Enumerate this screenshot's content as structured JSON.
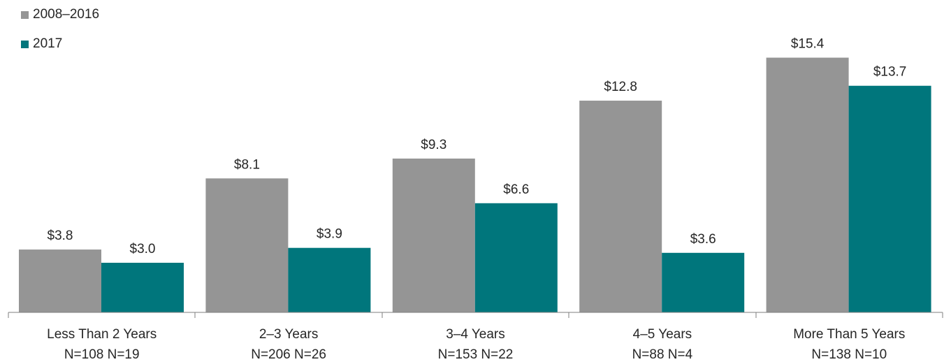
{
  "chart_data": {
    "type": "bar",
    "categories": [
      "Less Than 2 Years",
      "2–3 Years",
      "3–4 Years",
      "4–5 Years",
      "More Than 5 Years"
    ],
    "sample_sizes": [
      [
        "N=108",
        "N=19"
      ],
      [
        "N=206",
        "N=26"
      ],
      [
        "N=153",
        "N=22"
      ],
      [
        "N=88",
        "N=4"
      ],
      [
        "N=138",
        "N=10"
      ]
    ],
    "series": [
      {
        "name": "2008–2016",
        "color": "#959595",
        "values": [
          3.8,
          8.1,
          9.3,
          12.8,
          15.4
        ],
        "labels": [
          "$3.8",
          "$8.1",
          "$9.3",
          "$12.8",
          "$15.4"
        ]
      },
      {
        "name": "2017",
        "color": "#00767c",
        "values": [
          3.0,
          3.9,
          6.6,
          3.6,
          13.7
        ],
        "labels": [
          "$3.0",
          "$3.9",
          "$6.6",
          "$3.6",
          "$13.7"
        ]
      }
    ],
    "title": "",
    "xlabel": "",
    "ylabel": "",
    "ylim": [
      0,
      16.9
    ],
    "grid": false,
    "legend": "top-left"
  }
}
